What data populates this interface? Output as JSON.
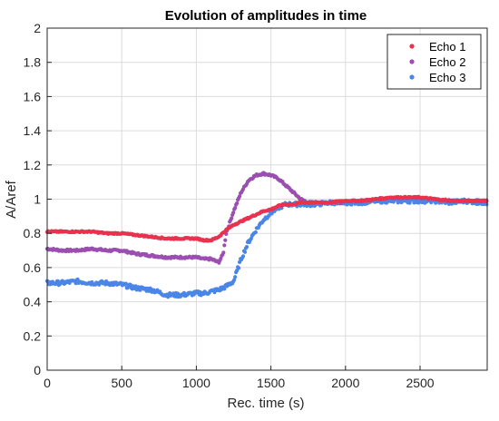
{
  "chart_data": {
    "type": "scatter",
    "title": "Evolution of amplitudes in time",
    "xlabel": "Rec. time (s)",
    "ylabel": "A/Aref",
    "xlim": [
      0,
      2950
    ],
    "ylim": [
      0,
      2
    ],
    "x_ticks": [
      0,
      500,
      1000,
      1500,
      2000,
      2500
    ],
    "y_ticks": [
      0,
      0.2,
      0.4,
      0.6,
      0.8,
      1,
      1.2,
      1.4,
      1.6,
      1.8,
      2
    ],
    "x_tick_labels": [
      "0",
      "500",
      "1000",
      "1500",
      "2000",
      "2500"
    ],
    "y_tick_labels": [
      "0",
      "0.2",
      "0.4",
      "0.6",
      "0.8",
      "1",
      "1.2",
      "1.4",
      "1.6",
      "1.8",
      "2"
    ],
    "grid": true,
    "legend_position": "top-right",
    "series": [
      {
        "name": "Echo 1",
        "color": "#e8324e",
        "x": [
          0,
          100,
          200,
          300,
          400,
          500,
          600,
          700,
          800,
          900,
          1000,
          1050,
          1100,
          1150,
          1200,
          1250,
          1300,
          1350,
          1400,
          1450,
          1500,
          1550,
          1600,
          1650,
          1700,
          1800,
          1900,
          2000,
          2100,
          2200,
          2300,
          2400,
          2500,
          2600,
          2700,
          2800,
          2900,
          2950
        ],
        "y": [
          0.81,
          0.81,
          0.81,
          0.81,
          0.8,
          0.8,
          0.79,
          0.78,
          0.77,
          0.77,
          0.77,
          0.76,
          0.76,
          0.78,
          0.82,
          0.85,
          0.87,
          0.89,
          0.91,
          0.93,
          0.94,
          0.96,
          0.97,
          0.97,
          0.98,
          0.98,
          0.98,
          0.99,
          0.99,
          1.0,
          1.01,
          1.01,
          1.01,
          1.0,
          0.99,
          0.99,
          0.99,
          0.99
        ]
      },
      {
        "name": "Echo 2",
        "color": "#9b4fb0",
        "x": [
          0,
          100,
          200,
          300,
          400,
          500,
          600,
          700,
          800,
          900,
          1000,
          1050,
          1100,
          1150,
          1180,
          1200,
          1250,
          1300,
          1350,
          1400,
          1450,
          1500,
          1550,
          1600,
          1650,
          1700,
          1750,
          1800,
          1900,
          2000,
          2100,
          2200,
          2300,
          2400,
          2500,
          2600,
          2700,
          2800,
          2900,
          2950
        ],
        "y": [
          0.71,
          0.7,
          0.7,
          0.71,
          0.7,
          0.7,
          0.68,
          0.67,
          0.66,
          0.66,
          0.66,
          0.65,
          0.65,
          0.63,
          0.68,
          0.8,
          0.93,
          1.04,
          1.11,
          1.14,
          1.15,
          1.14,
          1.12,
          1.08,
          1.04,
          1.0,
          0.98,
          0.98,
          0.98,
          0.98,
          0.99,
          0.99,
          1.0,
          1.0,
          1.0,
          1.0,
          0.99,
          0.99,
          0.99,
          0.99
        ]
      },
      {
        "name": "Echo 3",
        "color": "#4a86e8",
        "x": [
          0,
          100,
          200,
          300,
          400,
          500,
          600,
          700,
          800,
          900,
          1000,
          1050,
          1100,
          1150,
          1200,
          1250,
          1300,
          1350,
          1400,
          1450,
          1500,
          1550,
          1600,
          1650,
          1700,
          1800,
          1900,
          2000,
          2100,
          2200,
          2300,
          2400,
          2500,
          2600,
          2700,
          2800,
          2900,
          2950
        ],
        "y": [
          0.51,
          0.51,
          0.52,
          0.51,
          0.51,
          0.5,
          0.48,
          0.47,
          0.44,
          0.44,
          0.45,
          0.45,
          0.46,
          0.47,
          0.49,
          0.52,
          0.65,
          0.75,
          0.82,
          0.88,
          0.92,
          0.95,
          0.97,
          0.97,
          0.97,
          0.97,
          0.98,
          0.98,
          0.98,
          0.99,
          0.99,
          0.99,
          0.99,
          0.99,
          0.98,
          0.99,
          0.98,
          0.98
        ]
      }
    ]
  }
}
